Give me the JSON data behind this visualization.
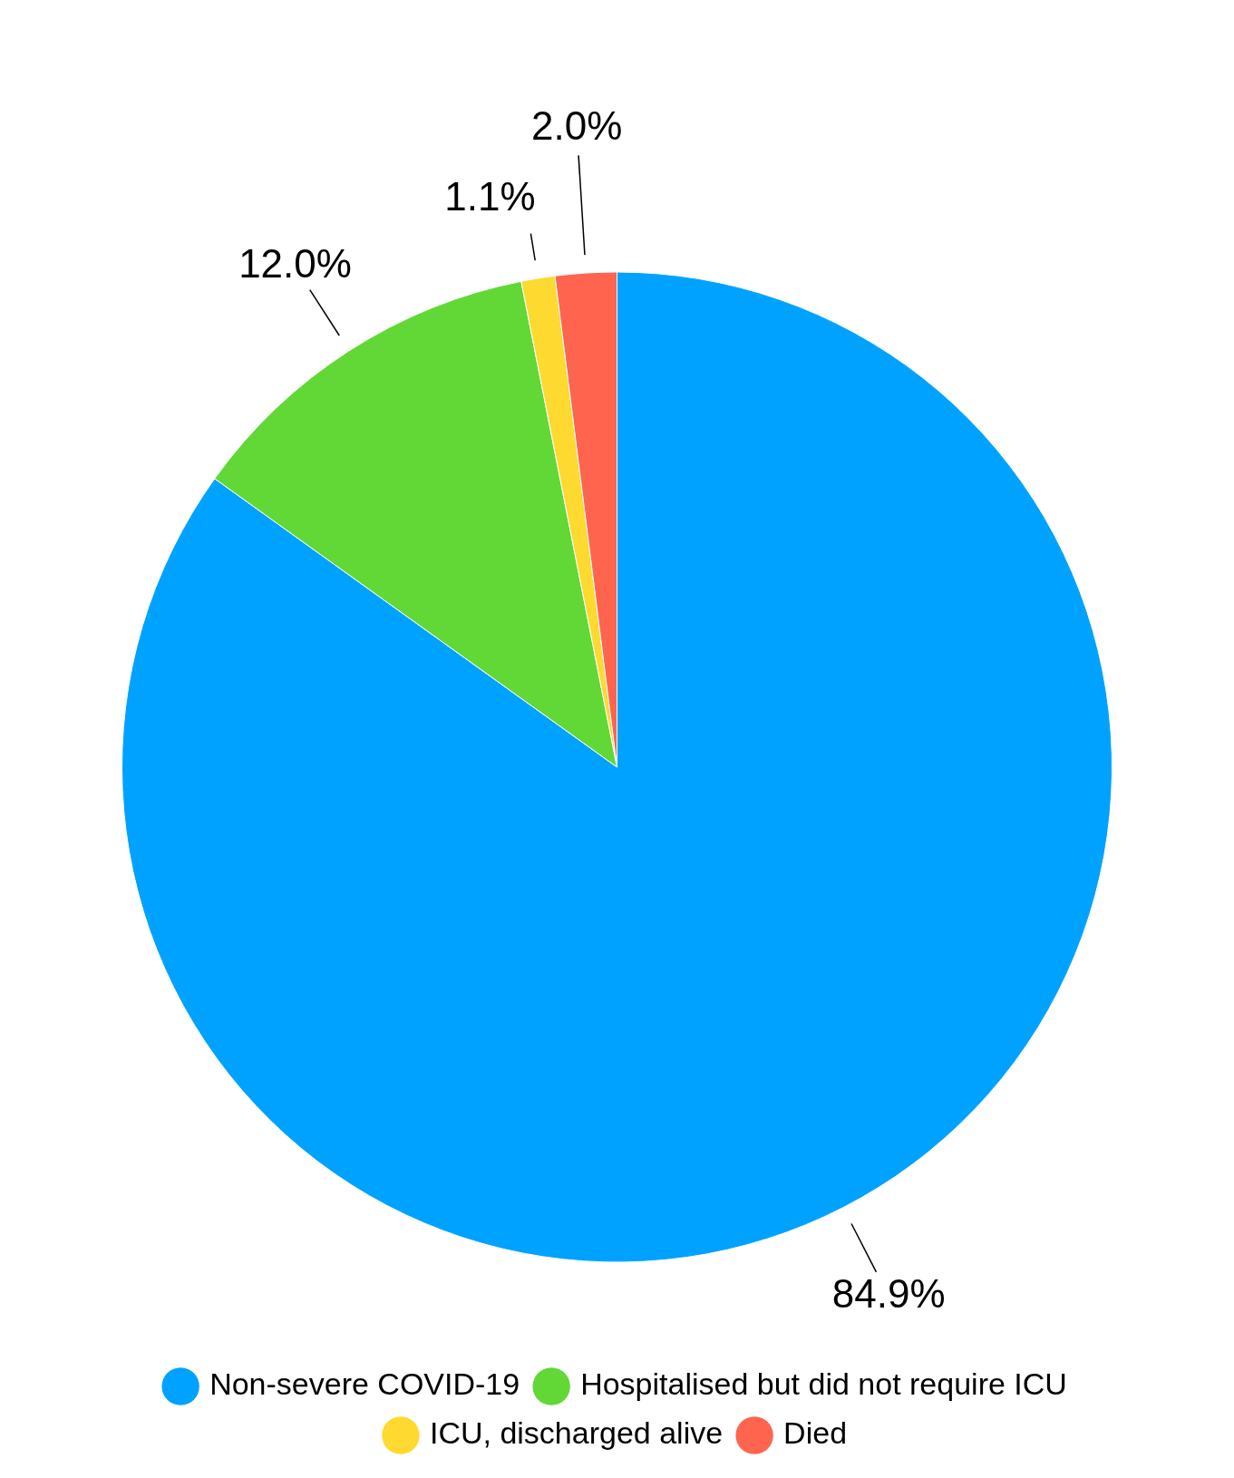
{
  "chart_data": {
    "type": "pie",
    "categories": [
      "Non-severe COVID-19",
      "Hospitalised but did not require ICU",
      "ICU, discharged alive",
      "Died"
    ],
    "values": [
      84.9,
      12.0,
      1.1,
      2.0
    ],
    "colors": [
      "#00a2ff",
      "#61d836",
      "#fed930",
      "#ff644e"
    ],
    "value_labels": [
      "84.9%",
      "12.0%",
      "1.1%",
      "2.0%"
    ],
    "legend": "bottom"
  }
}
